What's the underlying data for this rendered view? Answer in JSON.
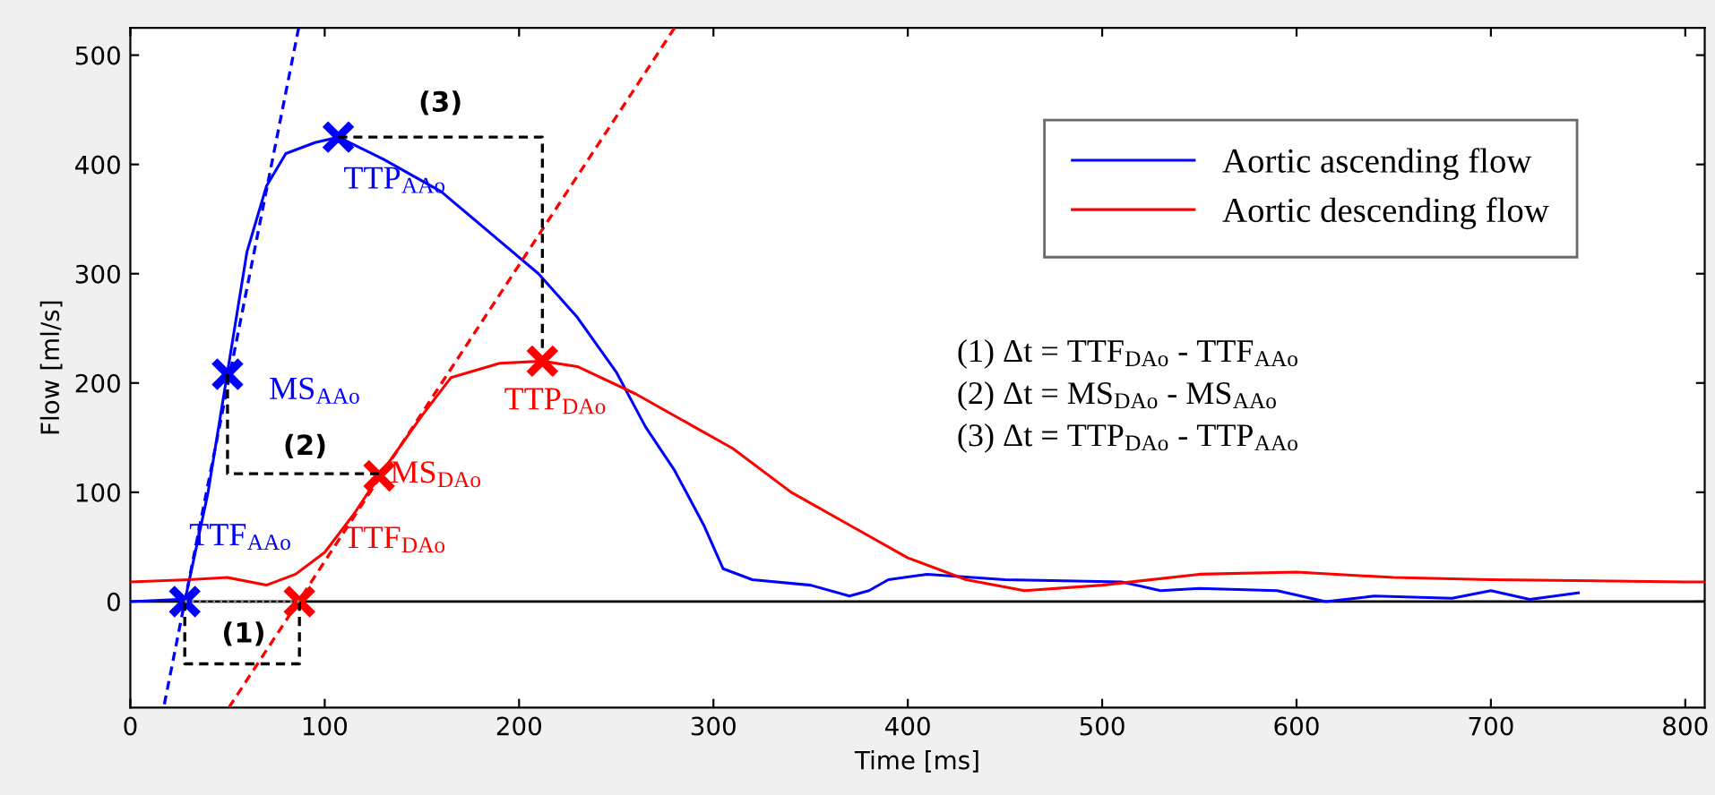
{
  "chart_data": {
    "type": "line",
    "xlabel": "Time [ms]",
    "ylabel": "Flow [ml/s]",
    "xlim": [
      0,
      810
    ],
    "ylim": [
      -97,
      525
    ],
    "xticks": [
      0,
      100,
      200,
      300,
      400,
      500,
      600,
      700,
      800
    ],
    "yticks": [
      0,
      100,
      200,
      300,
      400,
      500
    ],
    "grid": false,
    "legend": "top right",
    "line_style": "solid",
    "marker": "none",
    "ref_lines": [
      {
        "axis": "y",
        "value": 0,
        "color": "#000000",
        "line_style": "solid"
      }
    ],
    "series": [
      {
        "name": "Aortic ascending flow",
        "color": "#0000ff",
        "x": [
          0,
          25,
          28,
          40,
          50,
          60,
          70,
          80,
          95,
          107,
          130,
          160,
          190,
          210,
          230,
          250,
          265,
          280,
          295,
          305,
          320,
          350,
          370,
          380,
          390,
          410,
          450,
          510,
          530,
          550,
          590,
          615,
          640,
          680,
          700,
          720,
          745
        ],
        "values": [
          0,
          2,
          0,
          100,
          210,
          320,
          380,
          410,
          420,
          425,
          405,
          375,
          330,
          300,
          260,
          210,
          160,
          120,
          70,
          30,
          20,
          15,
          5,
          10,
          20,
          25,
          20,
          18,
          10,
          12,
          10,
          0,
          5,
          3,
          10,
          2,
          8
        ]
      },
      {
        "name": "Aortic descending flow",
        "color": "#ff0000",
        "x": [
          0,
          30,
          50,
          70,
          85,
          100,
          115,
          128,
          150,
          165,
          190,
          212,
          230,
          260,
          290,
          310,
          340,
          370,
          400,
          430,
          460,
          500,
          550,
          600,
          650,
          700,
          800,
          810
        ],
        "values": [
          18,
          20,
          22,
          15,
          25,
          45,
          80,
          115,
          170,
          205,
          218,
          220,
          215,
          190,
          160,
          140,
          100,
          70,
          40,
          20,
          10,
          15,
          25,
          27,
          22,
          20,
          18,
          18
        ]
      },
      {
        "color": "#0000ff",
        "line_style": "dashed",
        "x": [
          17.5,
          86.6
        ],
        "values": [
          -94,
          525
        ]
      },
      {
        "color": "#ff0000",
        "line_style": "dashed",
        "x": [
          50.7,
          280
        ],
        "values": [
          -97,
          525
        ]
      },
      {
        "color": "#000000",
        "line_style": "dashed",
        "x": [
          28,
          28,
          87,
          87
        ],
        "values": [
          0,
          -57,
          -57,
          0
        ]
      },
      {
        "color": "#000000",
        "line_style": "dashed",
        "x": [
          50,
          50,
          128
        ],
        "values": [
          208,
          117,
          117
        ]
      },
      {
        "color": "#000000",
        "line_style": "dashed",
        "x": [
          107,
          212,
          212
        ],
        "values": [
          425,
          425,
          232
        ]
      },
      {
        "color": "#888888",
        "line_style": "dotted",
        "x": [
          28,
          87
        ],
        "values": [
          0,
          0
        ]
      },
      {
        "type": "scatter",
        "marker": "cross",
        "color": "#0000ff",
        "x": [
          28,
          50,
          107
        ],
        "values": [
          0,
          208,
          425
        ]
      },
      {
        "type": "scatter",
        "marker": "cross",
        "color": "#ff0000",
        "x": [
          87,
          128,
          212
        ],
        "values": [
          0,
          115,
          220
        ]
      }
    ],
    "annotations": [
      "TTP$_{AAo}$",
      "MS$_{AAo}$",
      "TTF$_{AAo}$",
      "TTF$_{DAo}$",
      "MS$_{DAo}$",
      "TTP$_{DAo}$",
      "(1)",
      "(2)",
      "(3)",
      "(1) Δt = TTF$_{DAo}$ - TTF$_{AAo}$",
      "(2) Δt = MS$_{DAo}$ - MS$_{AAo}$",
      "(3) Δt = TTP$_{DAo}$ - TTP$_{AAo}$"
    ]
  }
}
